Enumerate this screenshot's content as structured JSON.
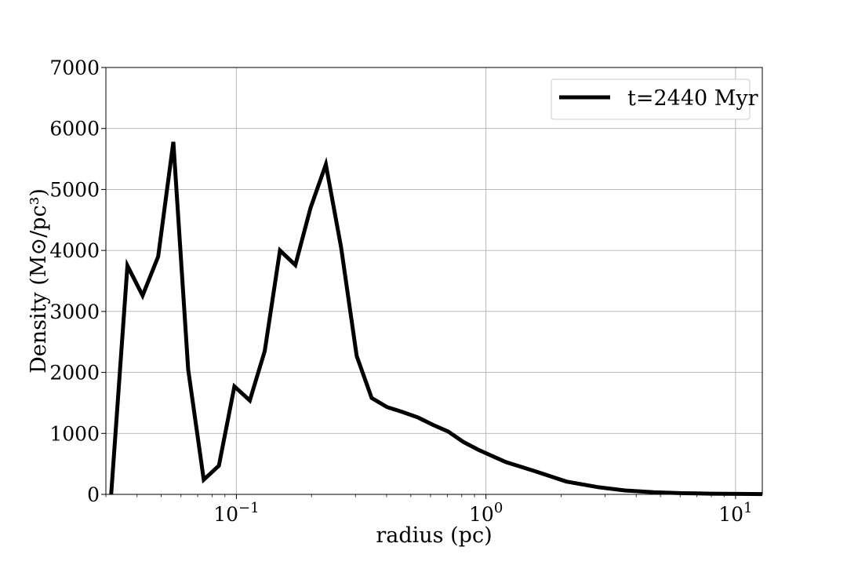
{
  "chart_data": {
    "type": "line",
    "xscale": "log",
    "xlabel": "radius (pc)",
    "ylabel": "Density (M⊙/pc³)",
    "xlim": [
      0.03,
      12.8
    ],
    "ylim": [
      0,
      7000
    ],
    "x_ticks": [
      {
        "value": 0.1,
        "base": "10",
        "exp": "−1"
      },
      {
        "value": 1,
        "base": "10",
        "exp": "0"
      },
      {
        "value": 10,
        "base": "10",
        "exp": "1"
      }
    ],
    "y_ticks": [
      "0",
      "1000",
      "2000",
      "3000",
      "4000",
      "5000",
      "6000",
      "7000"
    ],
    "grid": true,
    "legend_position": "top-right",
    "line_color": "#000000",
    "series": [
      {
        "name": "t=2440 Myr",
        "x": [
          0.0315,
          0.0366,
          0.0421,
          0.0486,
          0.0559,
          0.0641,
          0.074,
          0.0851,
          0.0982,
          0.1132,
          0.1299,
          0.1495,
          0.1723,
          0.1983,
          0.2283,
          0.2628,
          0.3034,
          0.3484,
          0.4021,
          0.4641,
          0.5346,
          0.613,
          0.706,
          0.812,
          0.933,
          1.2,
          1.6,
          2.1,
          2.8,
          3.6,
          4.7,
          6.1,
          8.0,
          10.5,
          12.8
        ],
        "y": [
          0,
          3750,
          3260,
          3900,
          5780,
          2050,
          240,
          470,
          1770,
          1540,
          2350,
          4000,
          3760,
          4700,
          5410,
          4050,
          2270,
          1580,
          1430,
          1350,
          1260,
          1140,
          1030,
          860,
          730,
          530,
          370,
          210,
          120,
          65,
          35,
          20,
          12,
          8,
          5
        ]
      }
    ]
  }
}
